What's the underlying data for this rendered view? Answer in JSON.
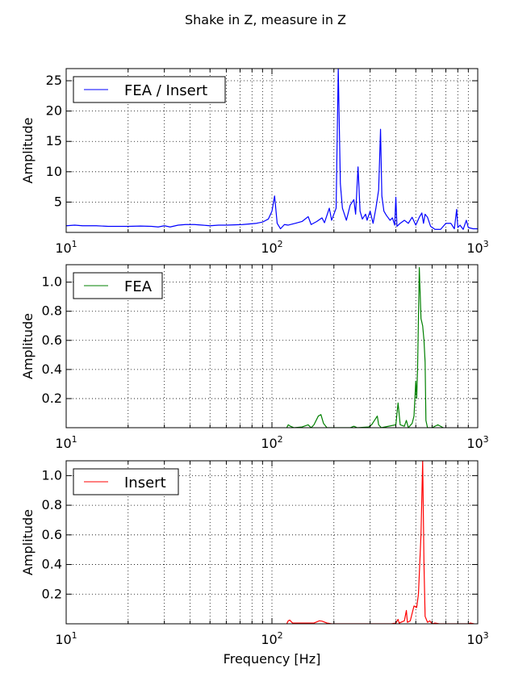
{
  "figure": {
    "title": "Shake in Z, measure in Z"
  },
  "chart_data": [
    {
      "type": "line",
      "xscale": "log",
      "xlim": [
        10,
        1000
      ],
      "ylim": [
        0,
        27
      ],
      "grid": true,
      "legend_position": "top-left",
      "ylabel": "Amplitude",
      "xlabel": "",
      "x_ticks": [
        {
          "base": "10",
          "exp": "1"
        },
        {
          "base": "10",
          "exp": "2"
        },
        {
          "base": "10",
          "exp": "3"
        }
      ],
      "y_ticks": [
        {
          "value": 5,
          "label": "5"
        },
        {
          "value": 10,
          "label": "10"
        },
        {
          "value": 15,
          "label": "15"
        },
        {
          "value": 20,
          "label": "20"
        },
        {
          "value": 25,
          "label": "25"
        }
      ],
      "series": [
        {
          "name": "FEA / Insert",
          "color": "#0000ff",
          "points": [
            [
              10,
              1.1
            ],
            [
              11,
              1.2
            ],
            [
              12,
              1.1
            ],
            [
              14,
              1.1
            ],
            [
              16,
              1.0
            ],
            [
              18,
              1.0
            ],
            [
              20,
              1.0
            ],
            [
              23,
              1.05
            ],
            [
              26,
              1.0
            ],
            [
              28,
              0.9
            ],
            [
              30,
              1.1
            ],
            [
              32,
              0.9
            ],
            [
              35,
              1.2
            ],
            [
              38,
              1.3
            ],
            [
              42,
              1.3
            ],
            [
              46,
              1.2
            ],
            [
              50,
              1.1
            ],
            [
              55,
              1.2
            ],
            [
              60,
              1.2
            ],
            [
              66,
              1.25
            ],
            [
              72,
              1.3
            ],
            [
              78,
              1.4
            ],
            [
              84,
              1.5
            ],
            [
              90,
              1.7
            ],
            [
              96,
              2.2
            ],
            [
              100,
              3.5
            ],
            [
              103,
              6.0
            ],
            [
              106,
              1.5
            ],
            [
              110,
              0.6
            ],
            [
              115,
              1.3
            ],
            [
              120,
              1.2
            ],
            [
              130,
              1.5
            ],
            [
              140,
              1.8
            ],
            [
              150,
              2.6
            ],
            [
              155,
              1.3
            ],
            [
              165,
              1.8
            ],
            [
              175,
              2.4
            ],
            [
              180,
              1.6
            ],
            [
              190,
              4.0
            ],
            [
              195,
              2.0
            ],
            [
              205,
              4.0
            ],
            [
              210,
              27.0
            ],
            [
              215,
              8.0
            ],
            [
              220,
              4.0
            ],
            [
              230,
              2.0
            ],
            [
              240,
              4.5
            ],
            [
              250,
              5.4
            ],
            [
              255,
              3.0
            ],
            [
              262,
              10.8
            ],
            [
              268,
              3.5
            ],
            [
              275,
              2.2
            ],
            [
              285,
              3.0
            ],
            [
              290,
              2.0
            ],
            [
              300,
              3.5
            ],
            [
              310,
              1.5
            ],
            [
              320,
              4.0
            ],
            [
              330,
              7.0
            ],
            [
              337,
              17.0
            ],
            [
              342,
              6.0
            ],
            [
              350,
              3.5
            ],
            [
              360,
              2.8
            ],
            [
              375,
              2.0
            ],
            [
              385,
              2.4
            ],
            [
              395,
              1.2
            ],
            [
              400,
              5.8
            ],
            [
              405,
              1.0
            ],
            [
              420,
              1.5
            ],
            [
              440,
              2.0
            ],
            [
              460,
              1.5
            ],
            [
              480,
              2.5
            ],
            [
              500,
              1.2
            ],
            [
              520,
              2.5
            ],
            [
              535,
              3.2
            ],
            [
              545,
              1.5
            ],
            [
              555,
              3.0
            ],
            [
              570,
              2.5
            ],
            [
              590,
              1.0
            ],
            [
              620,
              0.5
            ],
            [
              660,
              0.5
            ],
            [
              700,
              1.5
            ],
            [
              740,
              1.5
            ],
            [
              770,
              0.6
            ],
            [
              790,
              3.8
            ],
            [
              800,
              0.8
            ],
            [
              820,
              1.2
            ],
            [
              850,
              0.5
            ],
            [
              880,
              2.0
            ],
            [
              900,
              0.8
            ],
            [
              950,
              0.6
            ],
            [
              1000,
              0.6
            ]
          ]
        }
      ]
    },
    {
      "type": "line",
      "xscale": "log",
      "xlim": [
        10,
        1000
      ],
      "ylim": [
        0,
        1.12
      ],
      "grid": true,
      "legend_position": "top-left",
      "ylabel": "Amplitude",
      "xlabel": "",
      "x_ticks": [
        {
          "base": "10",
          "exp": "1"
        },
        {
          "base": "10",
          "exp": "2"
        },
        {
          "base": "10",
          "exp": "3"
        }
      ],
      "y_ticks": [
        {
          "value": 0.2,
          "label": "0.2"
        },
        {
          "value": 0.4,
          "label": "0.4"
        },
        {
          "value": 0.6,
          "label": "0.6"
        },
        {
          "value": 0.8,
          "label": "0.8"
        },
        {
          "value": 1.0,
          "label": "1.0"
        }
      ],
      "series": [
        {
          "name": "FEA",
          "color": "#008000",
          "points": [
            [
              118,
              0.0
            ],
            [
              120,
              0.02
            ],
            [
              123,
              0.01
            ],
            [
              128,
              0.0
            ],
            [
              140,
              0.005
            ],
            [
              150,
              0.02
            ],
            [
              155,
              0.0
            ],
            [
              160,
              0.02
            ],
            [
              168,
              0.08
            ],
            [
              173,
              0.09
            ],
            [
              178,
              0.03
            ],
            [
              185,
              0.0
            ],
            [
              240,
              0.0
            ],
            [
              250,
              0.01
            ],
            [
              260,
              0.0
            ],
            [
              295,
              0.005
            ],
            [
              305,
              0.02
            ],
            [
              315,
              0.05
            ],
            [
              325,
              0.08
            ],
            [
              330,
              0.02
            ],
            [
              340,
              0.0
            ],
            [
              400,
              0.02
            ],
            [
              410,
              0.17
            ],
            [
              420,
              0.02
            ],
            [
              440,
              0.01
            ],
            [
              450,
              0.05
            ],
            [
              460,
              0.0
            ],
            [
              480,
              0.03
            ],
            [
              490,
              0.08
            ],
            [
              500,
              0.32
            ],
            [
              505,
              0.2
            ],
            [
              510,
              0.4
            ],
            [
              520,
              1.1
            ],
            [
              530,
              0.75
            ],
            [
              540,
              0.7
            ],
            [
              548,
              0.6
            ],
            [
              555,
              0.45
            ],
            [
              560,
              0.05
            ],
            [
              570,
              0.0
            ],
            [
              600,
              0.0
            ],
            [
              640,
              0.02
            ],
            [
              680,
              0.0
            ]
          ]
        }
      ]
    },
    {
      "type": "line",
      "xscale": "log",
      "xlim": [
        10,
        1000
      ],
      "ylim": [
        0,
        1.1
      ],
      "grid": true,
      "legend_position": "top-left",
      "ylabel": "Amplitude",
      "xlabel": "Frequency [Hz]",
      "x_ticks": [
        {
          "base": "10",
          "exp": "1"
        },
        {
          "base": "10",
          "exp": "2"
        },
        {
          "base": "10",
          "exp": "3"
        }
      ],
      "y_ticks": [
        {
          "value": 0.2,
          "label": "0.2"
        },
        {
          "value": 0.4,
          "label": "0.4"
        },
        {
          "value": 0.6,
          "label": "0.6"
        },
        {
          "value": 0.8,
          "label": "0.8"
        },
        {
          "value": 1.0,
          "label": "1.0"
        }
      ],
      "series": [
        {
          "name": "Insert",
          "color": "#ff0000",
          "points": [
            [
              118,
              0.0
            ],
            [
              120,
              0.02
            ],
            [
              122,
              0.025
            ],
            [
              126,
              0.005
            ],
            [
              140,
              0.005
            ],
            [
              160,
              0.005
            ],
            [
              170,
              0.02
            ],
            [
              175,
              0.018
            ],
            [
              185,
              0.005
            ],
            [
              195,
              0.0
            ],
            [
              330,
              0.0
            ],
            [
              380,
              0.0
            ],
            [
              400,
              0.005
            ],
            [
              410,
              0.03
            ],
            [
              415,
              0.005
            ],
            [
              440,
              0.02
            ],
            [
              450,
              0.09
            ],
            [
              455,
              0.01
            ],
            [
              470,
              0.02
            ],
            [
              490,
              0.12
            ],
            [
              505,
              0.11
            ],
            [
              515,
              0.2
            ],
            [
              530,
              0.6
            ],
            [
              540,
              1.1
            ],
            [
              548,
              0.4
            ],
            [
              555,
              0.05
            ],
            [
              570,
              0.01
            ],
            [
              585,
              0.02
            ],
            [
              600,
              0.0
            ],
            [
              620,
              0.005
            ],
            [
              650,
              0.0
            ],
            [
              900,
              0.0
            ],
            [
              920,
              0.005
            ],
            [
              960,
              0.0
            ]
          ]
        }
      ]
    }
  ]
}
